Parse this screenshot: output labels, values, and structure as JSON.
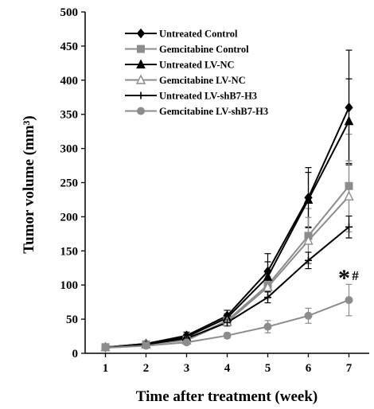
{
  "chart_data": {
    "type": "line",
    "xlabel": "Time after treatment (week)",
    "ylabel": "Tumor volume (mm³)",
    "x": [
      1,
      2,
      3,
      4,
      5,
      6,
      7
    ],
    "xlim": [
      0.5,
      7.5
    ],
    "ylim": [
      0,
      500
    ],
    "yticks": [
      0,
      50,
      100,
      150,
      200,
      250,
      300,
      350,
      400,
      450,
      500
    ],
    "grid": false,
    "legend_position": "top-left",
    "series": [
      {
        "name": "Untreated Control",
        "color": "#000000",
        "marker": "diamond",
        "values": [
          9,
          14,
          26,
          55,
          120,
          228,
          360
        ],
        "errors": [
          3,
          4,
          5,
          8,
          26,
          44,
          84
        ]
      },
      {
        "name": "Gemcitabine Control",
        "color": "#8c8c8c",
        "marker": "square",
        "values": [
          9,
          13,
          20,
          48,
          100,
          172,
          245
        ],
        "errors": [
          3,
          3,
          4,
          6,
          18,
          40,
          76
        ]
      },
      {
        "name": "Untreated LV-NC",
        "color": "#000000",
        "marker": "triangle",
        "values": [
          9,
          14,
          24,
          52,
          112,
          225,
          340
        ],
        "errors": [
          3,
          4,
          4,
          6,
          22,
          40,
          62
        ]
      },
      {
        "name": "Gemcitabine LV-NC",
        "color": "#8c8c8c",
        "marker": "triangle-open",
        "values": [
          9,
          13,
          19,
          46,
          97,
          165,
          230
        ],
        "errors": [
          3,
          3,
          4,
          6,
          16,
          34,
          52
        ]
      },
      {
        "name": "Untreated LV-shB7-H3",
        "color": "#000000",
        "marker": "plus",
        "values": [
          8,
          13,
          22,
          45,
          82,
          136,
          185
        ],
        "errors": [
          2,
          3,
          4,
          5,
          8,
          12,
          16
        ]
      },
      {
        "name": "Gemcitabine LV-shB7-H3",
        "color": "#8c8c8c",
        "marker": "circle",
        "values": [
          8,
          11,
          16,
          26,
          39,
          55,
          78
        ],
        "errors": [
          2,
          3,
          3,
          4,
          9,
          11,
          23
        ]
      }
    ],
    "annotations": [
      {
        "text": "*",
        "x": 7,
        "y": 120
      },
      {
        "text": "#",
        "x": 7,
        "y": 120
      }
    ]
  }
}
